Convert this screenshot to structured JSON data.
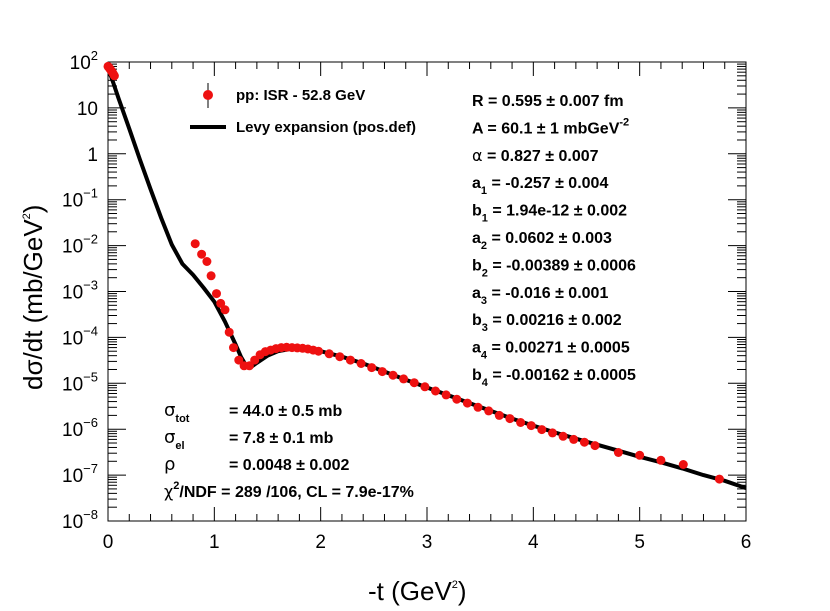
{
  "chart_data": {
    "type": "scatter",
    "title": "",
    "xlabel": "-t (GeV",
    "xlabel_sup": "2",
    "xlabel_close": ")",
    "ylabel": "dσ/dt (mb/GeV",
    "ylabel_sup": "2",
    "ylabel_close": ")",
    "xlim": [
      0,
      6
    ],
    "ylog_range": [
      -8,
      2
    ],
    "x_ticks": [
      "0",
      "1",
      "2",
      "3",
      "4",
      "5",
      "6"
    ],
    "y_ticks": [
      {
        "base": "10",
        "exp": "2"
      },
      {
        "base": "10",
        "exp": ""
      },
      {
        "base": "1",
        "exp": ""
      },
      {
        "base": "10",
        "exp": "−1"
      },
      {
        "base": "10",
        "exp": "−2"
      },
      {
        "base": "10",
        "exp": "−3"
      },
      {
        "base": "10",
        "exp": "−4"
      },
      {
        "base": "10",
        "exp": "−5"
      },
      {
        "base": "10",
        "exp": "−6"
      },
      {
        "base": "10",
        "exp": "−7"
      },
      {
        "base": "10",
        "exp": "−8"
      }
    ],
    "legend": [
      {
        "label": "pp: ISR - 52.8 GeV",
        "kind": "marker",
        "color": "#ee1111"
      },
      {
        "label": "Levy expansion (pos.def)",
        "kind": "line",
        "color": "#000000"
      }
    ],
    "series": [
      {
        "name": "pp: ISR - 52.8 GeV",
        "kind": "points",
        "color": "#ee1111",
        "x": [
          0.0,
          0.01,
          0.02,
          0.03,
          0.04,
          0.05,
          0.06,
          0.82,
          0.88,
          0.93,
          0.97,
          1.02,
          1.06,
          1.1,
          1.14,
          1.18,
          1.23,
          1.28,
          1.33,
          1.38,
          1.43,
          1.48,
          1.53,
          1.58,
          1.63,
          1.68,
          1.73,
          1.78,
          1.83,
          1.88,
          1.93,
          1.98,
          2.08,
          2.18,
          2.28,
          2.38,
          2.48,
          2.58,
          2.68,
          2.78,
          2.88,
          2.98,
          3.08,
          3.18,
          3.28,
          3.38,
          3.48,
          3.58,
          3.68,
          3.78,
          3.88,
          3.98,
          4.08,
          4.18,
          4.28,
          4.38,
          4.48,
          4.58,
          4.8,
          5.0,
          5.2,
          5.41,
          5.75
        ],
        "y": [
          80,
          75,
          70,
          65,
          60,
          55,
          50,
          0.011,
          0.0065,
          0.0045,
          0.0022,
          0.0009,
          0.00055,
          0.0004,
          0.00013,
          6e-05,
          3.2e-05,
          2.4e-05,
          2.4e-05,
          3.2e-05,
          4.2e-05,
          4.9e-05,
          5.3e-05,
          5.7e-05,
          6e-05,
          6.1e-05,
          6e-05,
          5.9e-05,
          5.8e-05,
          5.6e-05,
          5.3e-05,
          5e-05,
          4.4e-05,
          3.8e-05,
          3.2e-05,
          2.7e-05,
          2.2e-05,
          1.8e-05,
          1.5e-05,
          1.25e-05,
          1.03e-05,
          8.4e-06,
          6.8e-06,
          5.6e-06,
          4.5e-06,
          3.7e-06,
          3e-06,
          2.5e-06,
          2e-06,
          1.7e-06,
          1.4e-06,
          1.2e-06,
          9.8e-07,
          8.3e-07,
          7e-07,
          6e-07,
          5.2e-07,
          4.4e-07,
          3.1e-07,
          2.7e-07,
          2.1e-07,
          1.7e-07,
          8.2e-08
        ]
      },
      {
        "name": "Levy expansion (pos.def)",
        "kind": "line",
        "color": "#000000",
        "x": [
          0,
          0.05,
          0.1,
          0.2,
          0.3,
          0.4,
          0.5,
          0.6,
          0.7,
          0.8,
          0.9,
          1.0,
          1.1,
          1.2,
          1.25,
          1.3,
          1.35,
          1.4,
          1.5,
          1.6,
          1.7,
          1.8,
          1.9,
          2.0,
          2.2,
          2.4,
          2.6,
          2.8,
          3.0,
          3.2,
          3.4,
          3.6,
          3.8,
          4.0,
          4.2,
          4.4,
          4.6,
          4.8,
          5.0,
          5.2,
          5.4,
          5.6,
          5.8,
          6.0
        ],
        "y": [
          75,
          35,
          16,
          3.5,
          0.75,
          0.17,
          0.04,
          0.0105,
          0.004,
          0.0023,
          0.0012,
          0.0006,
          0.00022,
          7e-05,
          3.8e-05,
          2.4e-05,
          2.3e-05,
          2.8e-05,
          4e-05,
          5e-05,
          5.5e-05,
          5.7e-05,
          5.5e-05,
          5e-05,
          3.8e-05,
          2.7e-05,
          1.8e-05,
          1.2e-05,
          8.1e-06,
          5.5e-06,
          3.7e-06,
          2.5e-06,
          1.7e-06,
          1.2e-06,
          8.5e-07,
          6.2e-07,
          4.6e-07,
          3.4e-07,
          2.5e-07,
          1.9e-07,
          1.4e-07,
          1e-07,
          7.5e-08,
          5.2e-08
        ]
      }
    ],
    "fit_params_right": [
      {
        "sym": "R",
        "sub": "",
        "text": " = 0.595 ± 0.007 fm"
      },
      {
        "sym": "A",
        "sub": "",
        "text": " = 60.1 ± 1 mbGeV",
        "sup": "-2"
      },
      {
        "sym": "α",
        "sub": "",
        "text": "  = 0.827 ± 0.007"
      },
      {
        "sym": "a",
        "sub": "1",
        "text": " = -0.257 ± 0.004"
      },
      {
        "sym": "b",
        "sub": "1",
        "text": " = 1.94e-12 ± 0.002"
      },
      {
        "sym": "a",
        "sub": "2",
        "text": " = 0.0602 ± 0.003"
      },
      {
        "sym": "b",
        "sub": "2",
        "text": " = -0.00389 ± 0.0006"
      },
      {
        "sym": "a",
        "sub": "3",
        "text": " = -0.016 ± 0.001"
      },
      {
        "sym": "b",
        "sub": "3",
        "text": " = 0.00216 ± 0.002"
      },
      {
        "sym": "a",
        "sub": "4",
        "text": " = 0.00271 ± 0.0005"
      },
      {
        "sym": "b",
        "sub": "4",
        "text": " = -0.00162 ± 0.0005"
      }
    ],
    "fit_params_left": [
      {
        "sym": "σ",
        "sub": "tot",
        "text": "= 44.0 ± 0.5 mb"
      },
      {
        "sym": "σ",
        "sub": "el",
        "text": "= 7.8 ± 0.1 mb"
      },
      {
        "sym": "ρ",
        "sub": "",
        "text": "= 0.0048 ± 0.002"
      }
    ],
    "chi2": {
      "sym": "χ",
      "sup": "2",
      "text": "/NDF = 289 /106,  CL = 7.9e-17%"
    }
  }
}
